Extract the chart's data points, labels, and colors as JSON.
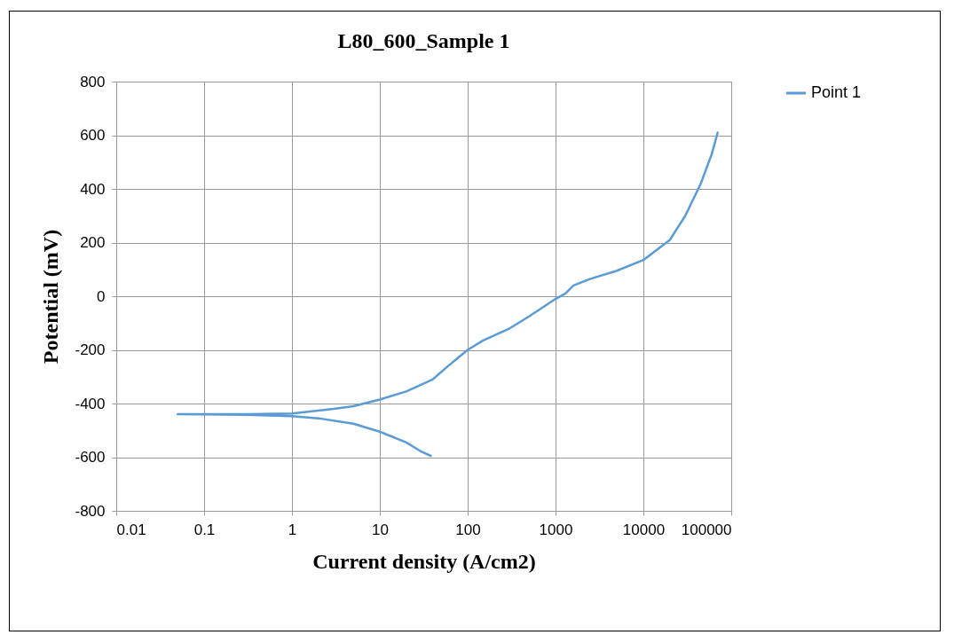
{
  "chart_data": {
    "type": "line",
    "title": "L80_600_Sample  1",
    "xlabel": "Current density (A/cm2)",
    "ylabel": "Potential (mV)",
    "log": "x",
    "xlim": [
      0.01,
      100000
    ],
    "xticks": [
      0.01,
      0.1,
      1,
      10,
      100,
      1000,
      10000,
      100000
    ],
    "ylim": [
      -800,
      800
    ],
    "yticks": [
      -800,
      -600,
      -400,
      -200,
      0,
      200,
      400,
      600,
      800
    ],
    "grid": true,
    "legend": "right",
    "line_style": "solid",
    "marker": "none",
    "series": [
      {
        "name": "Point 1",
        "color": "#5b9bd5",
        "x": [
          38,
          30,
          20,
          10,
          5,
          2,
          1,
          0.3,
          0.05,
          0.3,
          1,
          3,
          5,
          10,
          20,
          40,
          60,
          100,
          150,
          300,
          500,
          1000,
          1300,
          1600,
          2500,
          5000,
          10000,
          20000,
          30000,
          45000,
          60000,
          70000
        ],
        "values": [
          -595,
          -580,
          -545,
          -505,
          -475,
          -455,
          -447,
          -442,
          -440,
          -440,
          -437,
          -420,
          -410,
          -385,
          -355,
          -310,
          -260,
          -200,
          -165,
          -120,
          -75,
          -10,
          10,
          40,
          65,
          95,
          135,
          210,
          300,
          420,
          530,
          610
        ]
      }
    ]
  }
}
